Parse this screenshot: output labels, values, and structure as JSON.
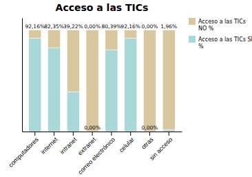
{
  "chart_data": {
    "type": "bar",
    "title": "Acceso a las TICs",
    "categories": [
      "computadores",
      "internet",
      "intranet",
      "extranet",
      "correo electrónico",
      "celular",
      "otras",
      "sin acceso"
    ],
    "stacked": true,
    "series": [
      {
        "name": "Acceso a las TICs SÍ\n%",
        "color": "#A8D8D8",
        "values": [
          92.16,
          82.35,
          39.22,
          0.0,
          80.39,
          92.16,
          0.0,
          1.96
        ],
        "value_labels": [
          "92,16%",
          "82,35%",
          "39,22%",
          "0,00%",
          "80,39%",
          "92,16%",
          "0,00%",
          "1,96%"
        ]
      },
      {
        "name": "Acceso a las TICs\nNO %",
        "color": "#D9C89E",
        "values": [
          7.84,
          17.65,
          60.78,
          100.0,
          19.61,
          7.84,
          100.0,
          98.04
        ]
      }
    ],
    "ylim": [
      0,
      112
    ],
    "tick_labels": "x",
    "data_labels": true,
    "legend": "upper right",
    "grid": false
  }
}
